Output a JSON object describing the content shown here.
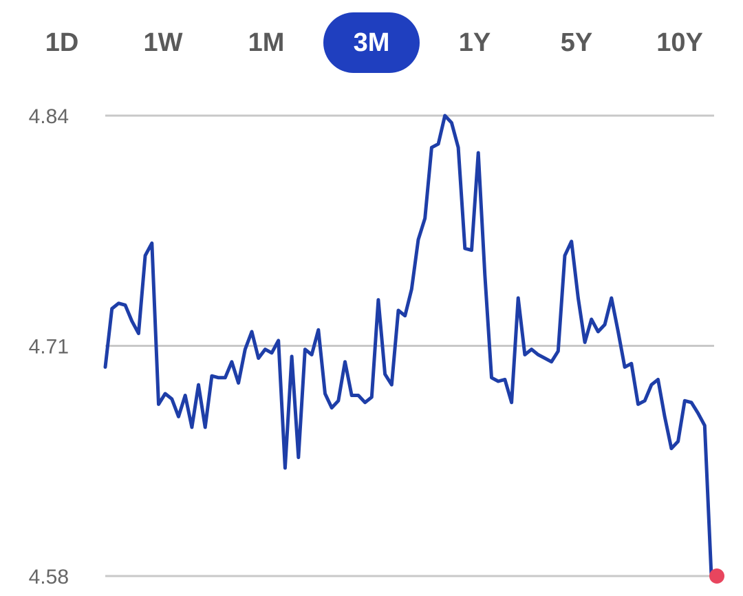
{
  "range_tabs": [
    {
      "label": "1D",
      "active": false
    },
    {
      "label": "1W",
      "active": false
    },
    {
      "label": "1M",
      "active": false
    },
    {
      "label": "3M",
      "active": true
    },
    {
      "label": "1Y",
      "active": false
    },
    {
      "label": "5Y",
      "active": false
    },
    {
      "label": "10Y",
      "active": false
    }
  ],
  "colors": {
    "line": "#1e3ea8",
    "active_tab": "#1f3fbf",
    "gridline": "#c8c8c8",
    "endpoint": "#e8455e"
  },
  "chart_data": {
    "type": "line",
    "ylim": [
      4.58,
      4.84
    ],
    "y_ticks": [
      "4.84",
      "4.71",
      "4.58"
    ],
    "grid": true,
    "series": [
      {
        "values": [
          4.698,
          4.731,
          4.734,
          4.733,
          4.724,
          4.717,
          4.761,
          4.768,
          4.677,
          4.683,
          4.68,
          4.67,
          4.682,
          4.664,
          4.688,
          4.664,
          4.693,
          4.692,
          4.692,
          4.701,
          4.689,
          4.708,
          4.718,
          4.703,
          4.708,
          4.706,
          4.713,
          4.641,
          4.704,
          4.647,
          4.708,
          4.705,
          4.719,
          4.683,
          4.675,
          4.679,
          4.701,
          4.682,
          4.682,
          4.678,
          4.681,
          4.736,
          4.694,
          4.688,
          4.73,
          4.727,
          4.742,
          4.77,
          4.782,
          4.822,
          4.824,
          4.84,
          4.836,
          4.822,
          4.765,
          4.764,
          4.819,
          4.75,
          4.692,
          4.69,
          4.691,
          4.678,
          4.737,
          4.705,
          4.708,
          4.705,
          4.703,
          4.701,
          4.707,
          4.761,
          4.769,
          4.737,
          4.712,
          4.725,
          4.718,
          4.722,
          4.737,
          4.718,
          4.698,
          4.7,
          4.677,
          4.679,
          4.688,
          4.691,
          4.67,
          4.652,
          4.656,
          4.679,
          4.678,
          4.672,
          4.665,
          4.58
        ]
      }
    ]
  }
}
